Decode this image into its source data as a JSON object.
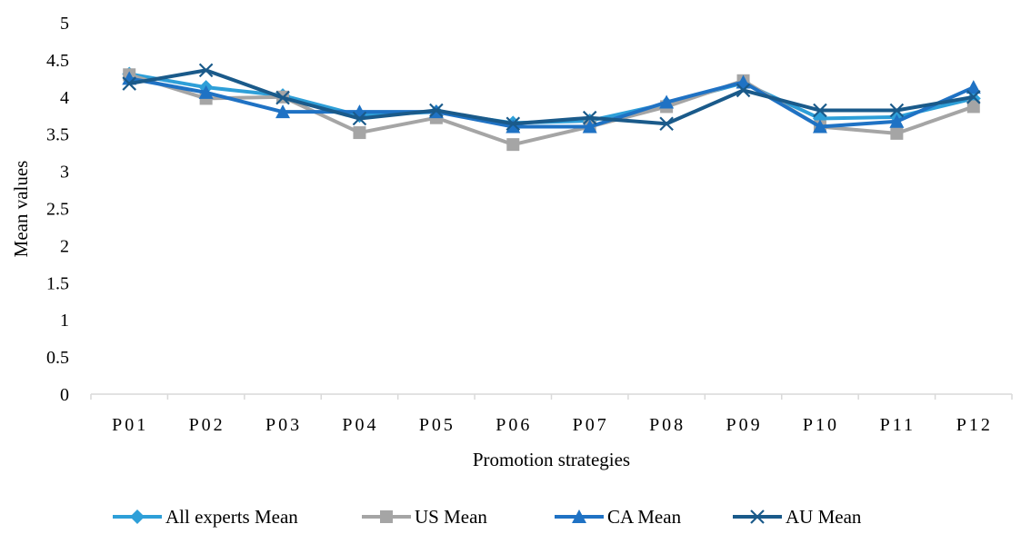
{
  "chart_data": {
    "type": "line",
    "title": "",
    "xlabel": "Promotion strategies",
    "ylabel": "Mean values",
    "ylim": [
      0,
      5
    ],
    "yticks": [
      "0",
      "0.5",
      "1",
      "1.5",
      "2",
      "2.5",
      "3",
      "3.5",
      "4",
      "4.5",
      "5"
    ],
    "categories": [
      "P01",
      "P02",
      "P03",
      "P04",
      "P05",
      "P06",
      "P07",
      "P08",
      "P09",
      "P10",
      "P11",
      "P12"
    ],
    "grid": false,
    "legend_position": "bottom",
    "series": [
      {
        "name": "All experts Mean",
        "color": "#2e9fd8",
        "marker": "diamond",
        "values": [
          4.31,
          4.13,
          4.02,
          3.75,
          3.8,
          3.65,
          3.68,
          3.91,
          4.19,
          3.71,
          3.73,
          3.98
        ]
      },
      {
        "name": "US Mean",
        "color": "#a5a5a5",
        "marker": "square",
        "values": [
          4.3,
          3.98,
          4.0,
          3.52,
          3.72,
          3.36,
          3.6,
          3.87,
          4.22,
          3.6,
          3.51,
          3.87
        ]
      },
      {
        "name": "CA Mean",
        "color": "#1f72c4",
        "marker": "triangle",
        "values": [
          4.25,
          4.06,
          3.8,
          3.8,
          3.8,
          3.6,
          3.6,
          3.93,
          4.2,
          3.6,
          3.67,
          4.13
        ]
      },
      {
        "name": "AU Mean",
        "color": "#1a5a8a",
        "marker": "x",
        "values": [
          4.18,
          4.36,
          3.99,
          3.71,
          3.82,
          3.64,
          3.72,
          3.64,
          4.09,
          3.82,
          3.82,
          4.0
        ]
      }
    ]
  }
}
